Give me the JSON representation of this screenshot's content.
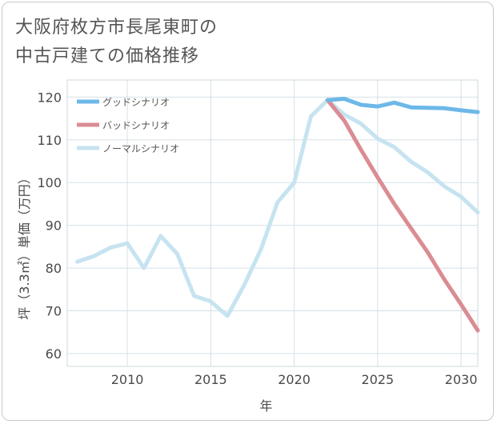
{
  "title_line1": "大阪府枚方市長尾東町の",
  "title_line2": "中古戸建ての価格推移",
  "chart_data": {
    "type": "line",
    "title": "大阪府枚方市長尾東町の中古戸建ての価格推移",
    "xlabel": "年",
    "ylabel": "坪（3.3㎡）単価（万円）",
    "xlim": [
      2006.4,
      2031
    ],
    "ylim": [
      57,
      124
    ],
    "x_ticks": [
      2010,
      2015,
      2020,
      2025,
      2030
    ],
    "y_ticks": [
      60,
      70,
      80,
      90,
      100,
      110,
      120
    ],
    "grid": true,
    "legend_position": "top-left",
    "series": [
      {
        "name": "グッドシナリオ",
        "color": "#6cb8e8",
        "x": [
          2022,
          2023,
          2024,
          2025,
          2026,
          2027,
          2028,
          2029,
          2030,
          2031
        ],
        "values": [
          119.3,
          119.6,
          118.2,
          117.8,
          118.7,
          117.6,
          117.5,
          117.4,
          116.9,
          116.5
        ]
      },
      {
        "name": "バッドシナリオ",
        "color": "#db8c93",
        "x": [
          2022,
          2023,
          2024,
          2025,
          2026,
          2027,
          2028,
          2029,
          2030,
          2031
        ],
        "values": [
          119.3,
          114.5,
          107.7,
          101.2,
          95.0,
          89.3,
          83.7,
          77.3,
          71.5,
          65.4
        ]
      },
      {
        "name": "ノーマルシナリオ",
        "color": "#c6e3f0",
        "x": [
          2007,
          2008,
          2009,
          2010,
          2011,
          2012,
          2013,
          2014,
          2015,
          2016,
          2017,
          2018,
          2019,
          2020,
          2021,
          2022,
          2023,
          2024,
          2025,
          2026,
          2027,
          2028,
          2029,
          2030,
          2031
        ],
        "values": [
          81.5,
          82.8,
          84.8,
          85.8,
          80.0,
          87.5,
          83.3,
          73.5,
          72.2,
          68.8,
          76.0,
          84.3,
          95.4,
          100.0,
          115.5,
          119.3,
          115.9,
          113.8,
          110.3,
          108.3,
          104.9,
          102.4,
          99.1,
          96.7,
          93.0
        ]
      }
    ]
  }
}
